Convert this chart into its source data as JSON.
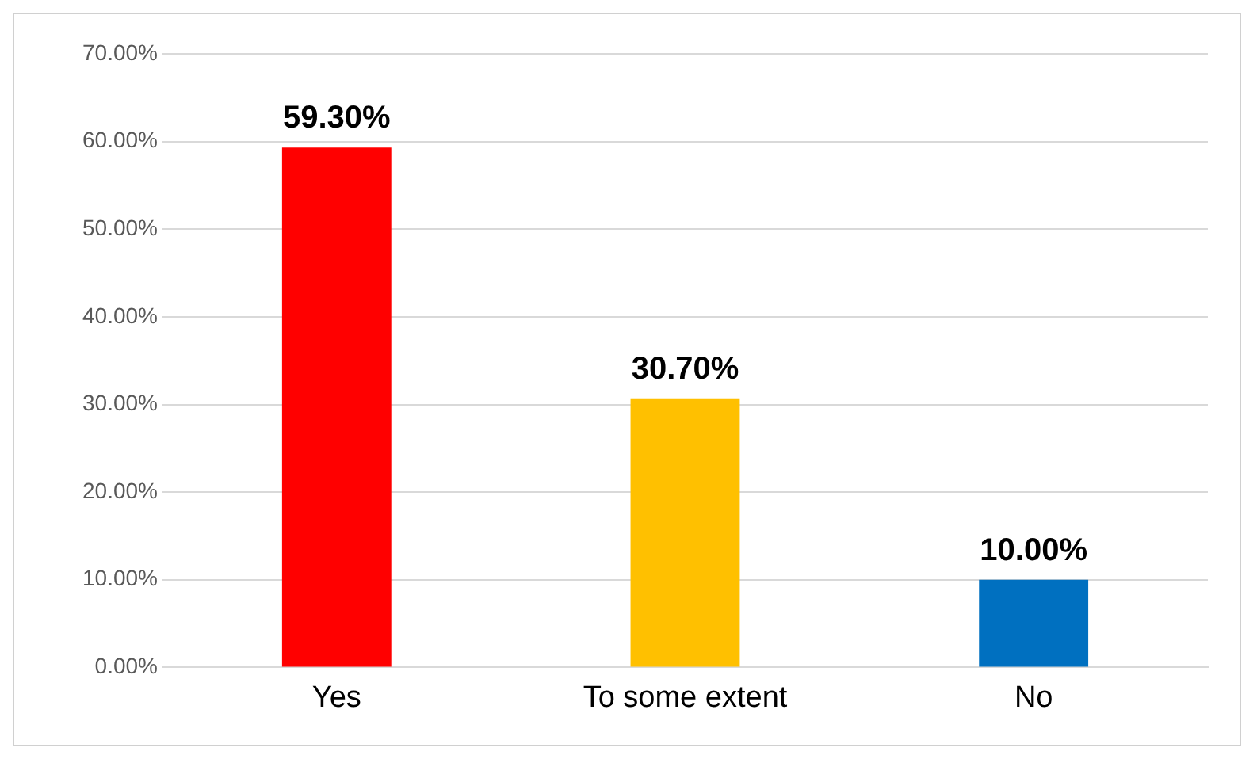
{
  "chart_data": {
    "type": "bar",
    "categories": [
      "Yes",
      "To some extent",
      "No"
    ],
    "values": [
      59.3,
      30.7,
      10.0
    ],
    "colors": [
      "#ff0000",
      "#ffc000",
      "#0070c0"
    ],
    "value_labels": [
      "59.30%",
      "30.70%",
      "10.00%"
    ],
    "ylim": [
      0,
      70
    ],
    "yticks": [
      {
        "value": 0,
        "label": "0.00%"
      },
      {
        "value": 10,
        "label": "10.00%"
      },
      {
        "value": 20,
        "label": "20.00%"
      },
      {
        "value": 30,
        "label": "30.00%"
      },
      {
        "value": 40,
        "label": "40.00%"
      },
      {
        "value": 50,
        "label": "50.00%"
      },
      {
        "value": 60,
        "label": "60.00%"
      },
      {
        "value": 70,
        "label": "70.00%"
      }
    ],
    "grid": "y",
    "legend": false
  }
}
